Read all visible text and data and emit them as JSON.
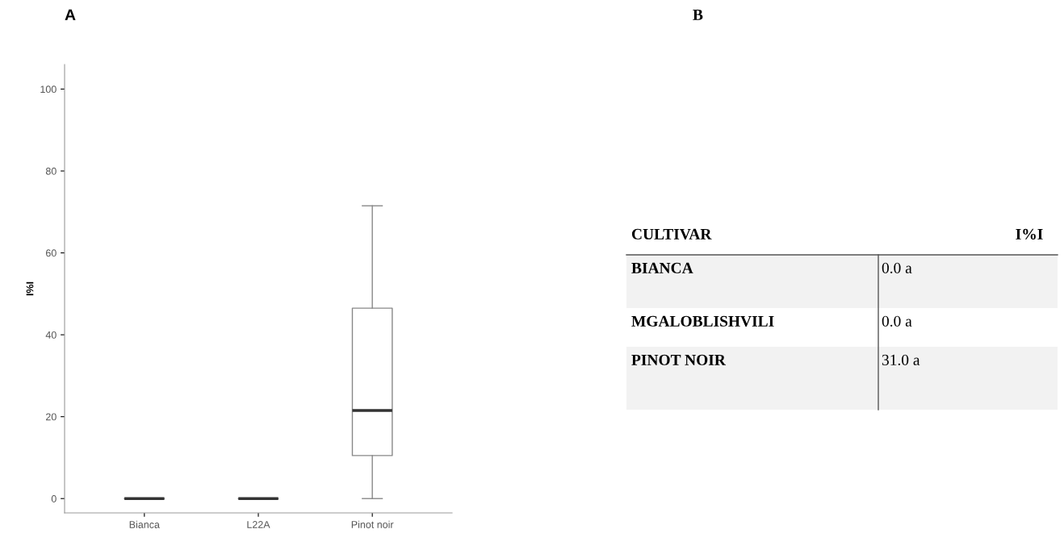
{
  "chart_data": [
    {
      "type": "box",
      "annotations": [
        "A"
      ],
      "ylabel": "I%I",
      "categories": [
        "Bianca",
        "L22A",
        "Pinot noir"
      ],
      "boxes": [
        {
          "low": 0,
          "q1": 0,
          "median": 0,
          "q3": 0,
          "high": 0
        },
        {
          "low": 0,
          "q1": 0,
          "median": 0,
          "q3": 0,
          "high": 0
        },
        {
          "low": 0,
          "q1": 10.5,
          "median": 21.5,
          "q3": 46.5,
          "high": 71.5
        }
      ],
      "ylim": [
        -3.5,
        106
      ],
      "yticks": [
        0,
        20,
        40,
        60,
        80,
        100
      ],
      "grid": false
    },
    {
      "type": "other",
      "annotations": [
        "B",
        "CULTIVAR"
      ],
      "categories": [
        "I%I"
      ],
      "y_categories": [
        "BIANCA",
        "MGALOBLISHVILI",
        "PINOT NOIR"
      ],
      "cell_labels": [
        [
          "0.0 a"
        ],
        [
          "0.0 a"
        ],
        [
          "31.0 a"
        ]
      ]
    }
  ]
}
